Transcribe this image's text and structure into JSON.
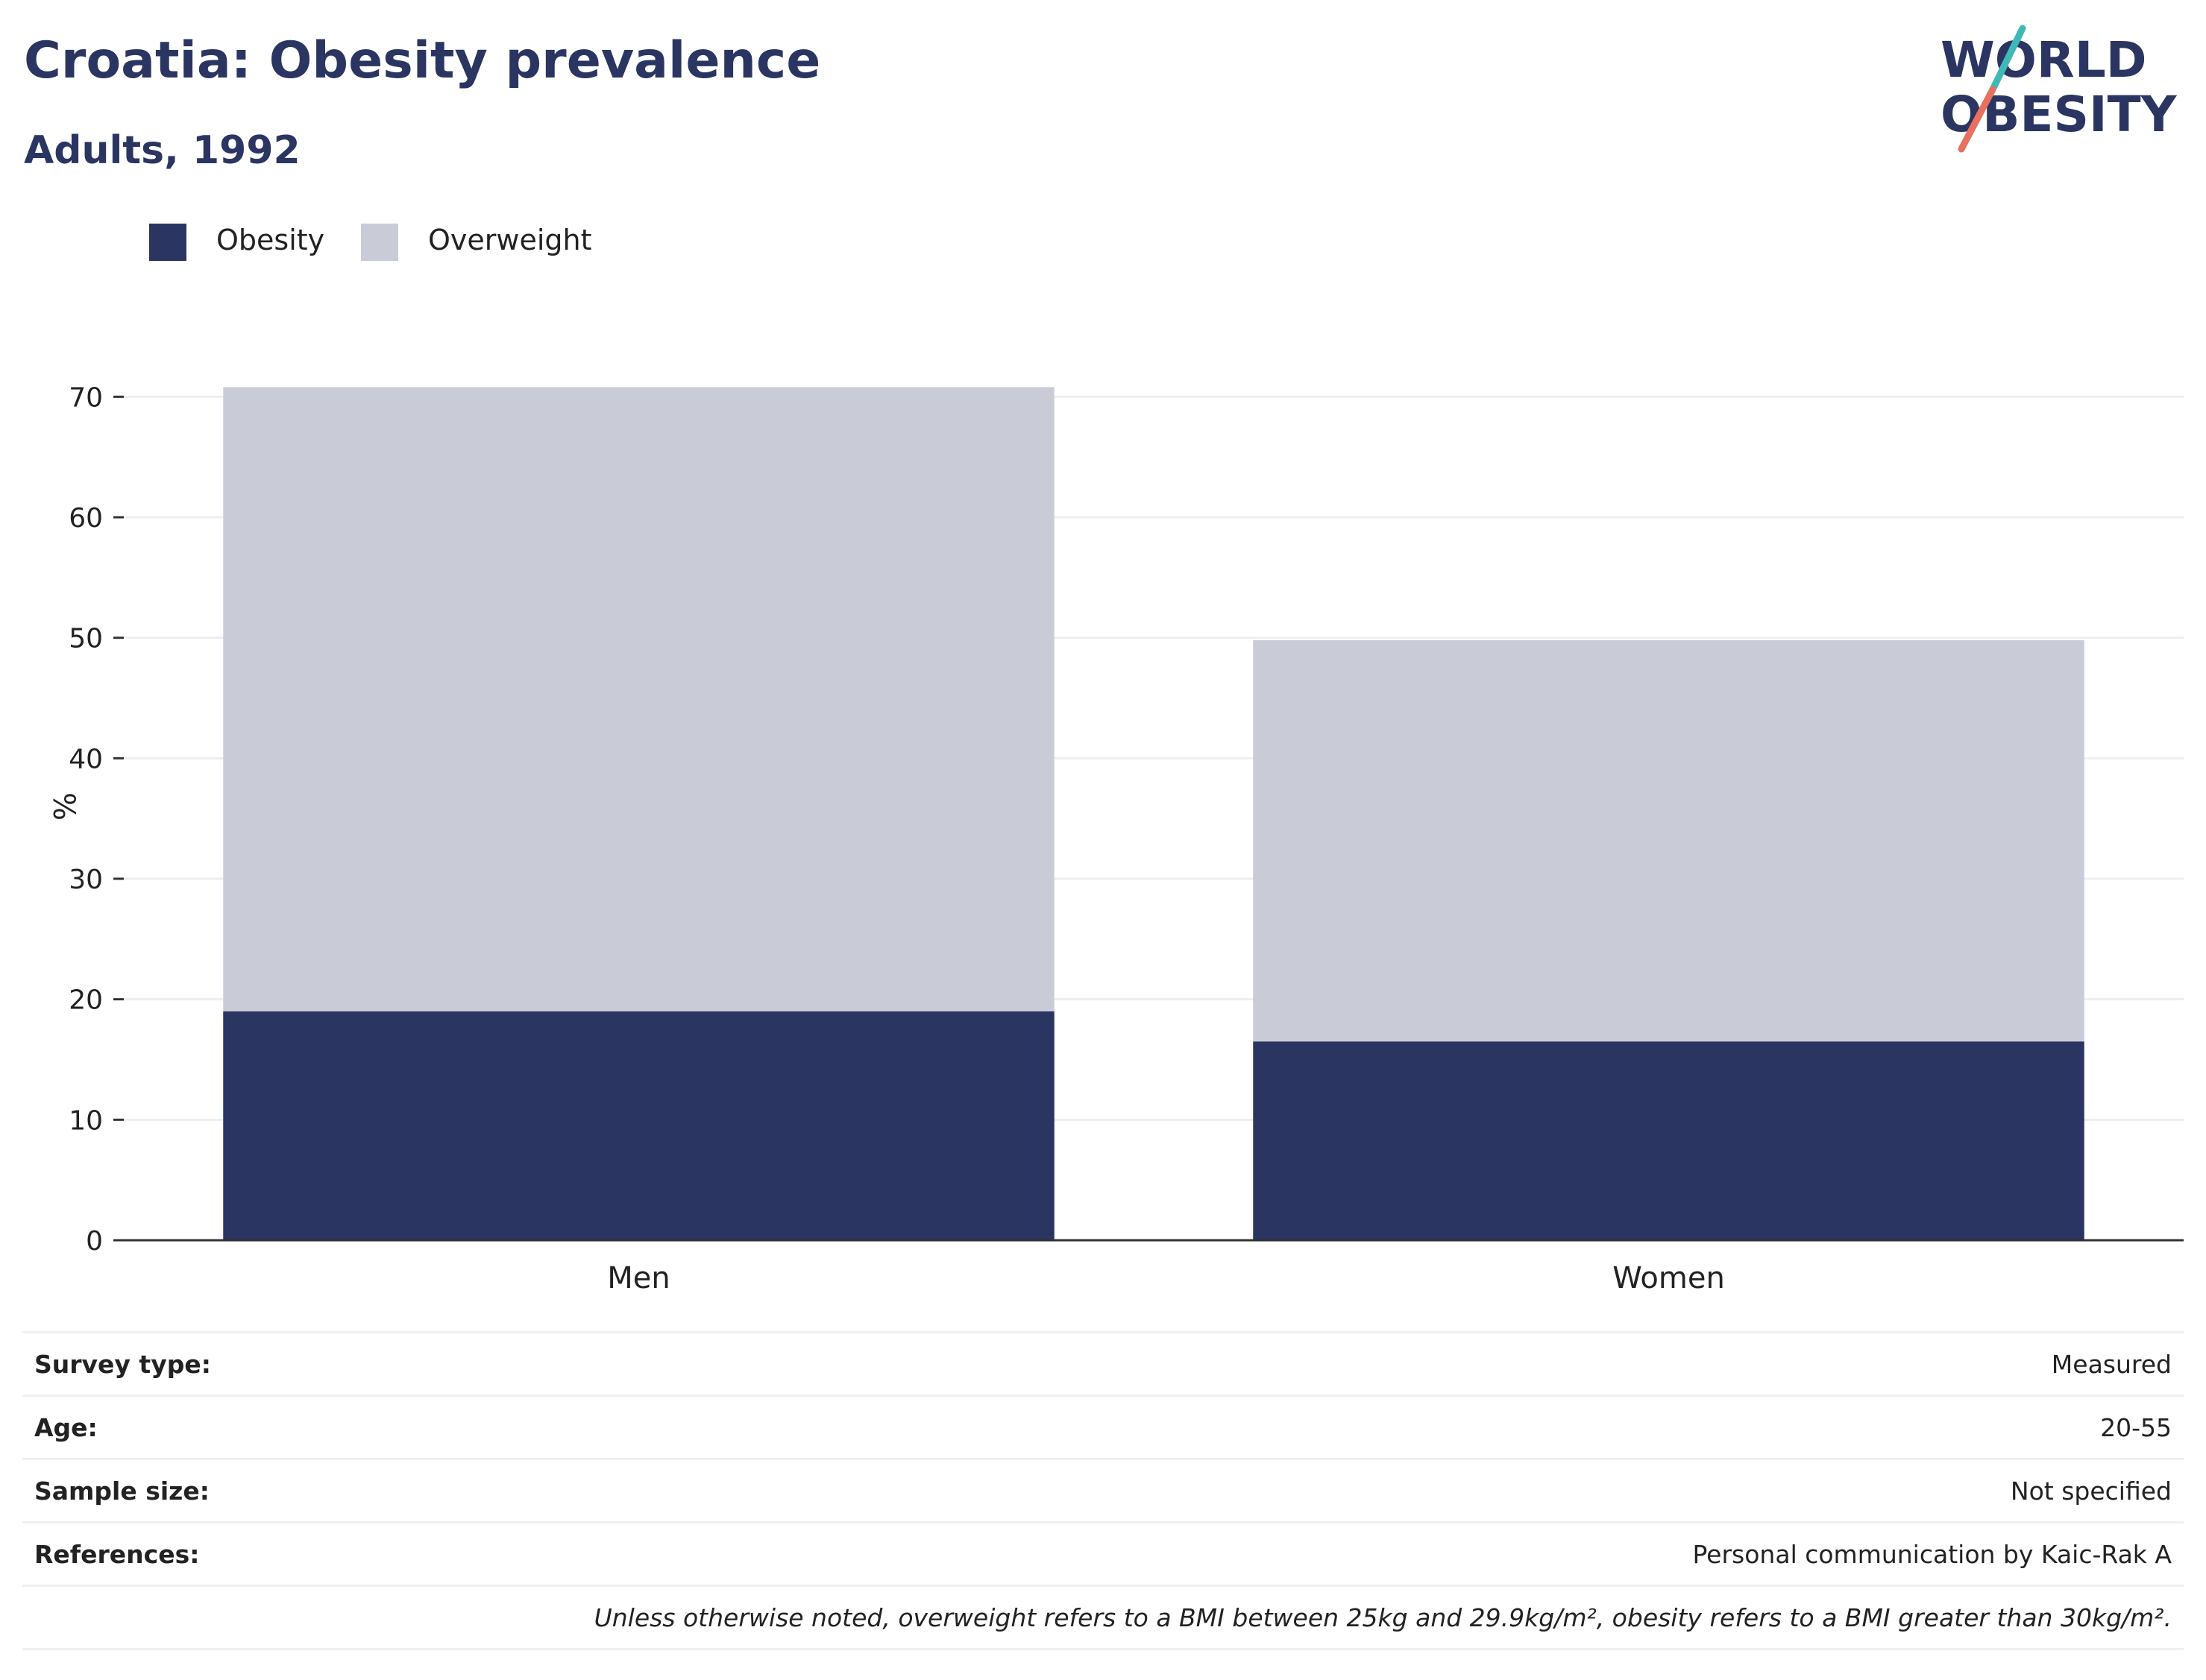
{
  "header": {
    "title": "Croatia: Obesity prevalence",
    "subtitle": "Adults, 1992"
  },
  "logo": {
    "line1": "WORLD",
    "line2": "OBESITY",
    "colors": {
      "text": "#2b3561",
      "slash_teal": "#3fb9b5",
      "slash_coral": "#e8705f"
    }
  },
  "legend": [
    {
      "label": "Obesity",
      "color": "#2b3561"
    },
    {
      "label": "Overweight",
      "color": "#c9ccd7"
    }
  ],
  "chart_data": {
    "type": "bar",
    "stacked": true,
    "categories": [
      "Men",
      "Women"
    ],
    "series": [
      {
        "name": "Obesity",
        "values": [
          19.0,
          16.5
        ],
        "color": "#2b3561"
      },
      {
        "name": "Overweight",
        "values": [
          51.8,
          33.3
        ],
        "color": "#c9ccd7"
      }
    ],
    "xlabel": "",
    "ylabel": "%",
    "ylim": [
      0,
      72
    ],
    "yticks": [
      0,
      10,
      20,
      30,
      40,
      50,
      60,
      70
    ],
    "grid": true,
    "legend_position": "top-left"
  },
  "info": [
    {
      "label": "Survey type:",
      "value": "Measured"
    },
    {
      "label": "Age:",
      "value": "20-55"
    },
    {
      "label": "Sample size:",
      "value": "Not specified"
    },
    {
      "label": "References:",
      "value": "Personal communication by Kaic-Rak A"
    },
    {
      "label": "",
      "value": "Unless otherwise noted, overweight refers to a BMI between 25kg and 29.9kg/m², obesity refers to a BMI greater than 30kg/m²."
    }
  ]
}
